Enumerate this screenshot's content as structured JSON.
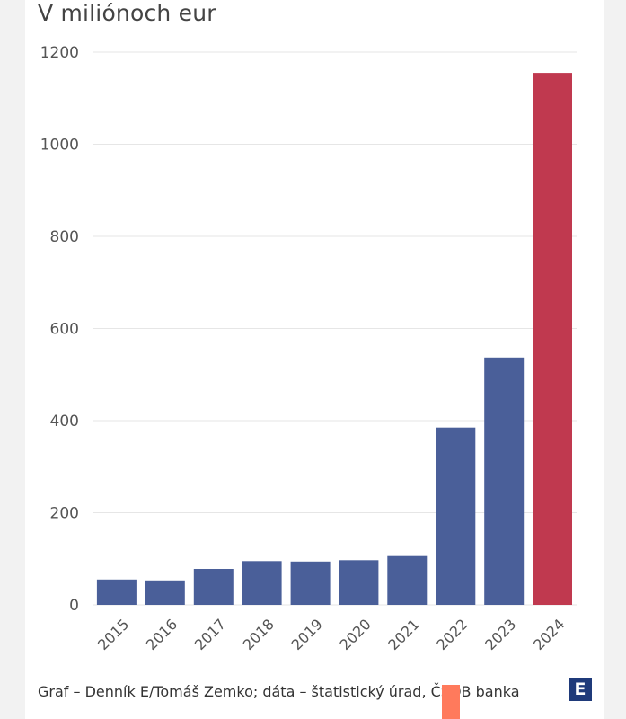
{
  "header": {
    "unit_title": "V miliónoch eur"
  },
  "footer": {
    "source": "Graf – Denník E/Tomáš Zemko; dáta – štatistický úrad, ČSOB banka",
    "logo_letter": "E"
  },
  "colors": {
    "default_bar": "#4a5f99",
    "highlight_bar": "#c0394f",
    "grid": "#e6e6e6",
    "logo": "#1f3a7a",
    "accent_mark": "#ff7a5c"
  },
  "icons": {
    "logo": "denník-e-logo-icon"
  },
  "chart_data": {
    "type": "bar",
    "title": "",
    "ylabel": "V miliónoch eur",
    "xlabel": "",
    "categories": [
      "2015",
      "2016",
      "2017",
      "2018",
      "2019",
      "2020",
      "2021",
      "2022",
      "2023",
      "2024"
    ],
    "values": [
      55,
      53,
      78,
      95,
      94,
      97,
      106,
      385,
      537,
      1155
    ],
    "highlight": [
      "2024"
    ],
    "ylim": [
      0,
      1200
    ],
    "yticks": [
      0,
      200,
      400,
      600,
      800,
      1000,
      1200
    ],
    "grid": true,
    "legend": "none"
  }
}
